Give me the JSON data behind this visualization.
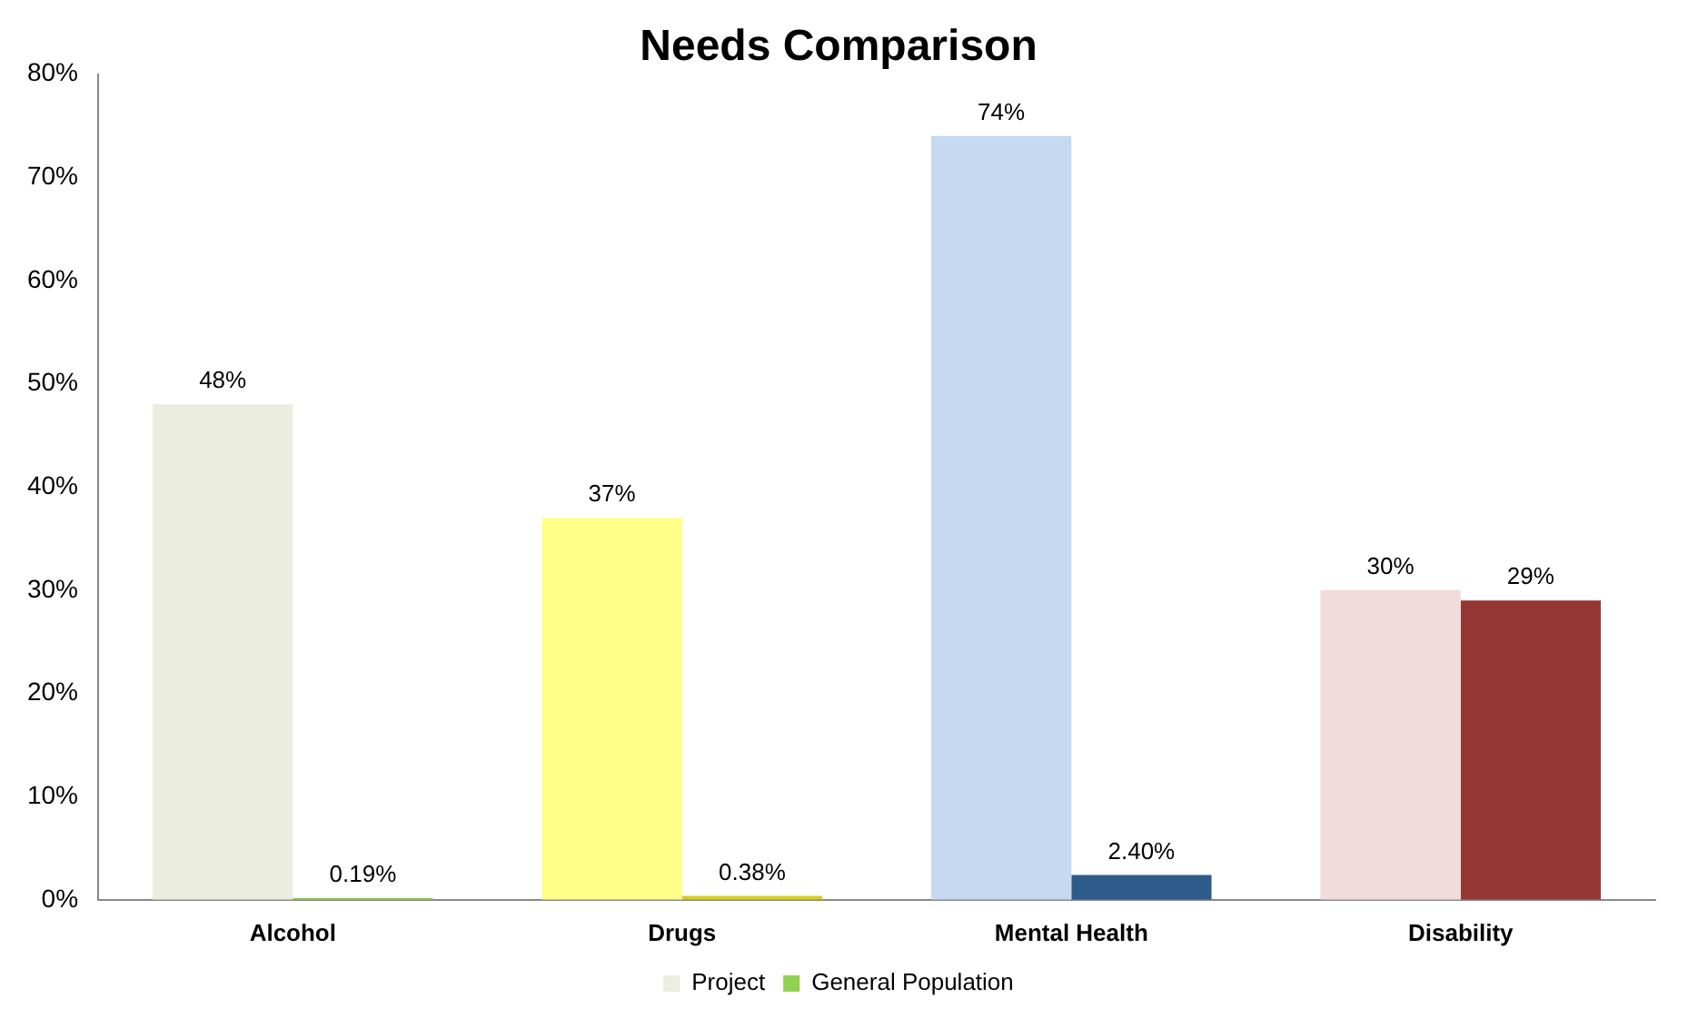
{
  "chart_data": {
    "type": "bar",
    "title": "Needs Comparison",
    "categories": [
      "Alcohol",
      "Drugs",
      "Mental Health",
      "Disability"
    ],
    "series": [
      {
        "name": "Project",
        "colors": [
          "#ebeedf",
          "#ffff88",
          "#c6d9f1",
          "#f2dcdb"
        ],
        "values": [
          48,
          37,
          74,
          30
        ],
        "value_labels": [
          "48%",
          "37%",
          "74%",
          "30%"
        ]
      },
      {
        "name": "General Population",
        "colors": [
          "#92d050",
          "#d6ce1e",
          "#2e5c8a",
          "#953735"
        ],
        "values": [
          0.19,
          0.38,
          2.4,
          29
        ],
        "value_labels": [
          "0.19%",
          "0.38%",
          "2.40%",
          "29%"
        ]
      }
    ],
    "ylim": [
      0,
      80
    ],
    "yticks": [
      {
        "value": 0,
        "label": "0%"
      },
      {
        "value": 10,
        "label": "10%"
      },
      {
        "value": 20,
        "label": "20%"
      },
      {
        "value": 30,
        "label": "30%"
      },
      {
        "value": 40,
        "label": "40%"
      },
      {
        "value": 50,
        "label": "50%"
      },
      {
        "value": 60,
        "label": "60%"
      },
      {
        "value": 70,
        "label": "70%"
      },
      {
        "value": 80,
        "label": "80%"
      }
    ],
    "grid": false,
    "legend": "bottom"
  }
}
